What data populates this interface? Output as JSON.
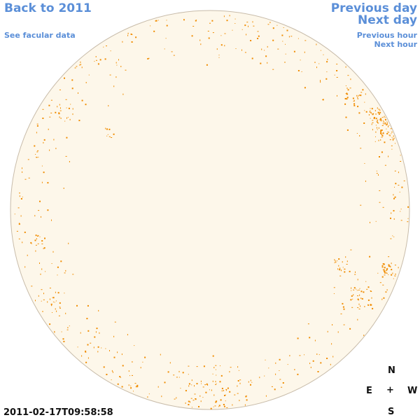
{
  "nav": {
    "back_year": "Back to 2011",
    "facular": "See facular data",
    "prev_day": "Previous day",
    "next_day": "Next day",
    "prev_hour": "Previous hour",
    "next_hour": "Next hour"
  },
  "timestamp": "2011-02-17T09:58:58",
  "compass": {
    "north": "N",
    "south": "S",
    "east": "E",
    "west": "W",
    "center": "+"
  },
  "colors": {
    "link": "#5b8fd8",
    "disk_fill": "#fdf7ea",
    "disk_edge": "#c8bcaa",
    "facula": "#f08c00"
  }
}
